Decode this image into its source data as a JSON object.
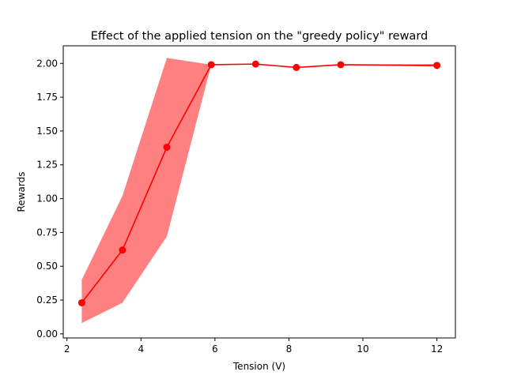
{
  "chart_data": {
    "type": "line",
    "title": "Effect of the applied tension on the \"greedy policy\" reward",
    "xlabel": "Tension (V)",
    "ylabel": "Rewards",
    "xlim": [
      1.9,
      12.5
    ],
    "ylim": [
      -0.03,
      2.13
    ],
    "xticks": [
      2,
      4,
      6,
      8,
      10,
      12
    ],
    "yticks": [
      0.0,
      0.25,
      0.5,
      0.75,
      1.0,
      1.25,
      1.5,
      1.75,
      2.0
    ],
    "xtick_labels": [
      "2",
      "4",
      "6",
      "8",
      "10",
      "12"
    ],
    "ytick_labels": [
      "0.00",
      "0.25",
      "0.50",
      "0.75",
      "1.00",
      "1.25",
      "1.50",
      "1.75",
      "2.00"
    ],
    "grid": false,
    "series": [
      {
        "x": [
          2.4,
          3.5,
          4.7,
          5.9,
          7.1,
          8.2,
          9.4,
          12.0
        ],
        "y": [
          0.23,
          0.62,
          1.38,
          1.99,
          1.995,
          1.97,
          1.99,
          1.985
        ],
        "lower": [
          0.08,
          0.23,
          0.72,
          1.99,
          1.995,
          1.97,
          1.99,
          1.975
        ],
        "upper": [
          0.4,
          1.02,
          2.04,
          1.99,
          1.995,
          1.97,
          1.99,
          1.995
        ],
        "color": "#ff0000",
        "band_color": "#ff8080",
        "marker": "circle"
      }
    ]
  }
}
